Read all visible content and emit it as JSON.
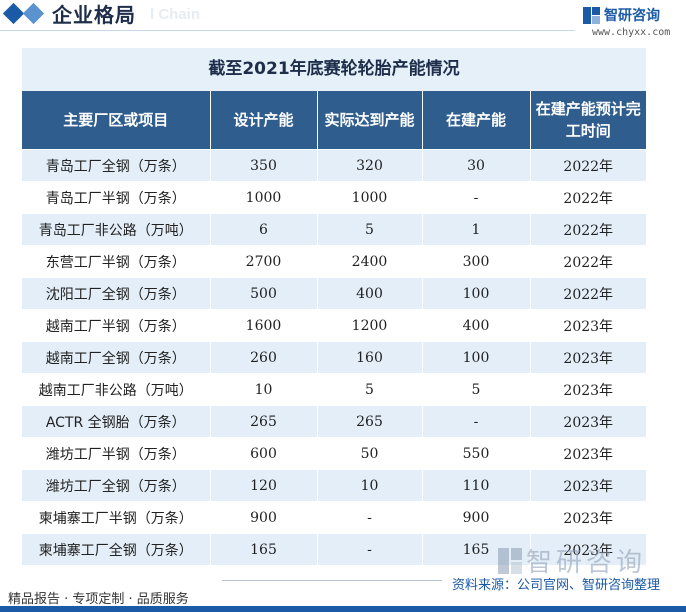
{
  "header": {
    "section_title": "企业格局",
    "faded_text": "l Chain",
    "logo_text": "智研咨询",
    "site_url": "www.chyxx.com"
  },
  "table": {
    "title": "截至2021年底赛轮轮胎产能情况",
    "columns": [
      "主要厂区或项目",
      "设计产能",
      "实际达到产能",
      "在建产能",
      "在建产能预计完工时间"
    ],
    "rows": [
      [
        "青岛工厂全钢（万条）",
        "350",
        "320",
        "30",
        "2022年"
      ],
      [
        "青岛工厂半钢（万条）",
        "1000",
        "1000",
        "-",
        "2022年"
      ],
      [
        "青岛工厂非公路（万吨）",
        "6",
        "5",
        "1",
        "2022年"
      ],
      [
        "东营工厂半钢（万条）",
        "2700",
        "2400",
        "300",
        "2022年"
      ],
      [
        "沈阳工厂全钢（万条）",
        "500",
        "400",
        "100",
        "2022年"
      ],
      [
        "越南工厂半钢（万条）",
        "1600",
        "1200",
        "400",
        "2023年"
      ],
      [
        "越南工厂全钢（万条）",
        "260",
        "160",
        "100",
        "2023年"
      ],
      [
        "越南工厂非公路（万吨）",
        "10",
        "5",
        "5",
        "2023年"
      ],
      [
        "ACTR 全钢胎（万条）",
        "265",
        "265",
        "-",
        "2023年"
      ],
      [
        "潍坊工厂半钢（万条）",
        "600",
        "50",
        "550",
        "2023年"
      ],
      [
        "潍坊工厂全钢（万条）",
        "120",
        "10",
        "110",
        "2023年"
      ],
      [
        "柬埔寨工厂半钢（万条）",
        "900",
        "-",
        "900",
        "2023年"
      ],
      [
        "柬埔寨工厂全钢（万条）",
        "165",
        "-",
        "165",
        "2023年"
      ]
    ]
  },
  "watermark": {
    "logo_text": "智研咨询"
  },
  "footer": {
    "left": "精品报告 · 专项定制 · 品质服务",
    "right": "资料来源：公司官网、智研咨询整理"
  },
  "colors": {
    "brand": "#1b5aa6",
    "header_row": "#2f5d8e",
    "stripe": "#e4eef8",
    "title_band": "#e5f0f9"
  }
}
